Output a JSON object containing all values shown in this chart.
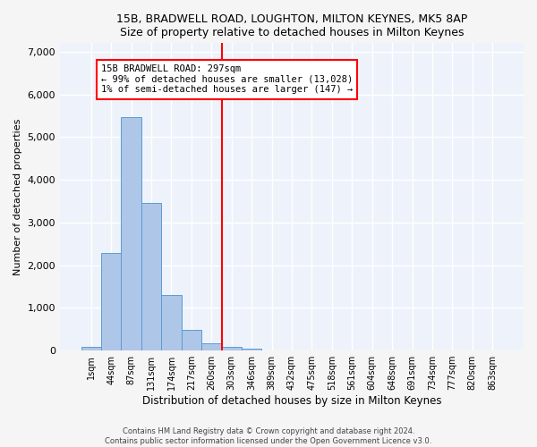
{
  "title": "15B, BRADWELL ROAD, LOUGHTON, MILTON KEYNES, MK5 8AP",
  "subtitle": "Size of property relative to detached houses in Milton Keynes",
  "xlabel": "Distribution of detached houses by size in Milton Keynes",
  "ylabel": "Number of detached properties",
  "footer_line1": "Contains HM Land Registry data © Crown copyright and database right 2024.",
  "footer_line2": "Contains public sector information licensed under the Open Government Licence v3.0.",
  "bar_labels": [
    "1sqm",
    "44sqm",
    "87sqm",
    "131sqm",
    "174sqm",
    "217sqm",
    "260sqm",
    "303sqm",
    "346sqm",
    "389sqm",
    "432sqm",
    "475sqm",
    "518sqm",
    "561sqm",
    "604sqm",
    "648sqm",
    "691sqm",
    "734sqm",
    "777sqm",
    "820sqm",
    "863sqm"
  ],
  "bar_values": [
    80,
    2280,
    5460,
    3450,
    1310,
    480,
    175,
    90,
    50,
    0,
    0,
    0,
    0,
    0,
    0,
    0,
    0,
    0,
    0,
    0,
    0
  ],
  "bar_color": "#aec6e8",
  "bar_edge_color": "#5b9bd5",
  "background_color": "#eef3fb",
  "grid_color": "#ffffff",
  "annotation_line1": "15B BRADWELL ROAD: 297sqm",
  "annotation_line2": "← 99% of detached houses are smaller (13,028)",
  "annotation_line3": "1% of semi-detached houses are larger (147) →",
  "vline_bar_index": 7,
  "ylim": [
    0,
    7200
  ],
  "yticks": [
    0,
    1000,
    2000,
    3000,
    4000,
    5000,
    6000,
    7000
  ],
  "fig_bg": "#f5f5f5"
}
